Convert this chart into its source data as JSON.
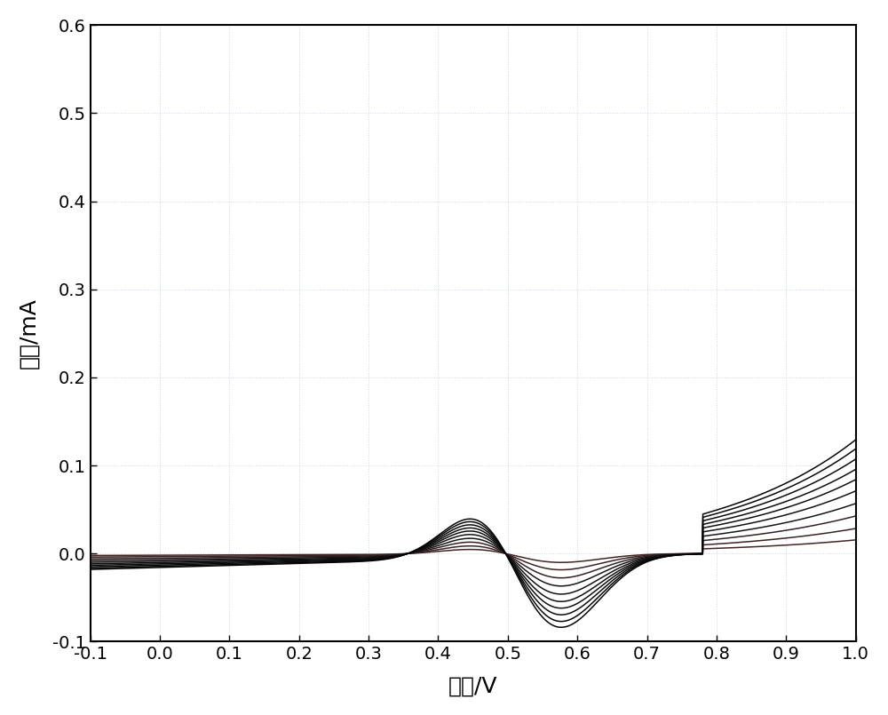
{
  "xlabel": "电位/V",
  "ylabel": "电流/mA",
  "xlim": [
    -0.1,
    1.0
  ],
  "ylim": [
    -0.1,
    0.6
  ],
  "xticks": [
    -0.1,
    0.0,
    0.1,
    0.2,
    0.3,
    0.4,
    0.5,
    0.6,
    0.7,
    0.8,
    0.9,
    1.0
  ],
  "yticks": [
    -0.1,
    0.0,
    0.1,
    0.2,
    0.3,
    0.4,
    0.5,
    0.6
  ],
  "n_curves": 10,
  "background_color": "#ffffff",
  "grid_color": "#b8cce4",
  "grid_alpha": 0.8,
  "linewidth": 1.1,
  "xlabel_fontsize": 18,
  "ylabel_fontsize": 18,
  "tick_fontsize": 14,
  "scales": [
    0.12,
    0.22,
    0.33,
    0.44,
    0.55,
    0.65,
    0.74,
    0.83,
    0.92,
    1.0
  ]
}
